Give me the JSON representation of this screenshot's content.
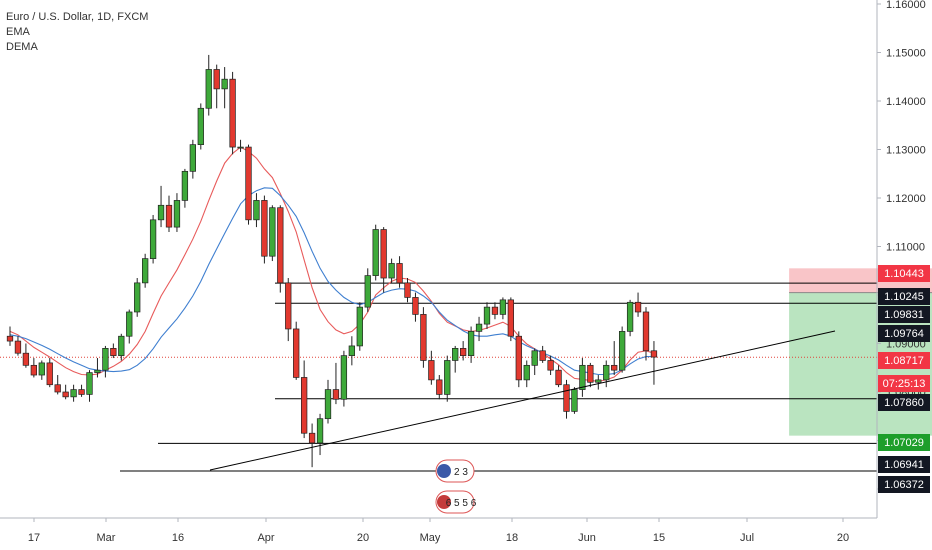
{
  "legend": {
    "symbol": "Euro / U.S. Dollar, 1D, FXCM",
    "indicator_1": "EMA",
    "indicator_2": "DEMA"
  },
  "chart_data": {
    "type": "candlestick",
    "title": "Euro / U.S. Dollar, 1D, FXCM",
    "ylim": [
      1.055,
      1.165
    ],
    "y_ticks": [
      "1.16000",
      "1.15000",
      "1.14000",
      "1.13000",
      "1.12000",
      "1.11000",
      "1.10000",
      "1.09000",
      "1.08000",
      "1.07000",
      "1.06000"
    ],
    "x_ticks": [
      "17",
      "Mar",
      "16",
      "Apr",
      "20",
      "May",
      "18",
      "Jun",
      "15",
      "Jul",
      "20"
    ],
    "price_labels": [
      {
        "text": "1.10443",
        "color": "#f23645"
      },
      {
        "text": "1.10245",
        "color": "#131722"
      },
      {
        "text": "1.09831",
        "color": "#131722"
      },
      {
        "text": "1.09764",
        "color": "#131722"
      },
      {
        "text": "1.08717",
        "color": "#f23645"
      },
      {
        "text": "07:25:13",
        "color": "#f23645"
      },
      {
        "text": "1.07860",
        "color": "#131722"
      },
      {
        "text": "1.07029",
        "color": "#1e9e2b"
      },
      {
        "text": "1.06941",
        "color": "#131722"
      },
      {
        "text": "1.06372",
        "color": "#131722"
      }
    ],
    "label_prices": [
      1.10443,
      1.10245,
      1.09831,
      1.09764,
      1.08717,
      1.08717,
      1.0786,
      1.07029,
      1.06941,
      1.06372
    ],
    "horizontal_levels": [
      1.10245,
      1.09831,
      1.0786,
      1.06941,
      1.06372
    ],
    "last_price": 1.08717,
    "trendline": {
      "from": [
        30,
        1.0648
      ],
      "to": [
        220,
        1.0971
      ]
    },
    "position": {
      "entry": 1.1005,
      "stop": 1.1055,
      "target": 1.071,
      "from_index": 98,
      "to_index": 121
    },
    "badges": [
      {
        "index": 101,
        "price": 1.0665,
        "text": "2 3"
      },
      {
        "index": 101,
        "price": 1.0625,
        "text": "6 5 5 6"
      }
    ],
    "candles": [
      [
        0,
        1.0915,
        1.0935,
        1.0895,
        1.0905
      ],
      [
        1,
        1.0905,
        1.0915,
        1.0875,
        1.088
      ],
      [
        2,
        1.088,
        1.09,
        1.085,
        1.0855
      ],
      [
        3,
        1.0855,
        1.087,
        1.083,
        1.0835
      ],
      [
        4,
        1.0835,
        1.0865,
        1.0825,
        1.086
      ],
      [
        5,
        1.086,
        1.087,
        1.081,
        1.0815
      ],
      [
        6,
        1.0815,
        1.0835,
        1.0795,
        1.08
      ],
      [
        7,
        1.08,
        1.0815,
        1.0785,
        1.079
      ],
      [
        8,
        1.079,
        1.0815,
        1.078,
        1.0805
      ],
      [
        9,
        1.0805,
        1.0815,
        1.079,
        1.0795
      ],
      [
        10,
        1.0795,
        1.0845,
        1.078,
        1.084
      ],
      [
        11,
        1.084,
        1.087,
        1.083,
        1.0845
      ],
      [
        12,
        1.0845,
        1.0895,
        1.083,
        1.089
      ],
      [
        13,
        1.089,
        1.09,
        1.087,
        1.0875
      ],
      [
        14,
        1.0875,
        1.092,
        1.0865,
        1.0915
      ],
      [
        15,
        1.0915,
        1.097,
        1.09,
        1.0965
      ],
      [
        16,
        1.0965,
        1.1035,
        1.0955,
        1.1025
      ],
      [
        17,
        1.1025,
        1.1085,
        1.1015,
        1.1075
      ],
      [
        18,
        1.1075,
        1.1165,
        1.1065,
        1.1155
      ],
      [
        19,
        1.1155,
        1.1225,
        1.114,
        1.1185
      ],
      [
        20,
        1.1185,
        1.1205,
        1.113,
        1.114
      ],
      [
        21,
        1.114,
        1.121,
        1.113,
        1.1195
      ],
      [
        22,
        1.1195,
        1.126,
        1.118,
        1.1255
      ],
      [
        23,
        1.1255,
        1.132,
        1.124,
        1.131
      ],
      [
        24,
        1.131,
        1.1395,
        1.13,
        1.1385
      ],
      [
        25,
        1.1385,
        1.1495,
        1.137,
        1.1465
      ],
      [
        26,
        1.1465,
        1.1475,
        1.1385,
        1.1425
      ],
      [
        27,
        1.1425,
        1.147,
        1.1385,
        1.1445
      ],
      [
        28,
        1.1445,
        1.146,
        1.129,
        1.1305
      ],
      [
        29,
        1.1305,
        1.132,
        1.1295,
        1.1305
      ],
      [
        30,
        1.1305,
        1.131,
        1.1145,
        1.1155
      ],
      [
        31,
        1.1155,
        1.121,
        1.114,
        1.1195
      ],
      [
        32,
        1.1195,
        1.1205,
        1.1065,
        1.108
      ],
      [
        33,
        1.108,
        1.1185,
        1.107,
        1.118
      ],
      [
        34,
        1.118,
        1.1185,
        1.1005,
        1.1025
      ],
      [
        35,
        1.1025,
        1.1035,
        1.0905,
        1.093
      ],
      [
        36,
        1.093,
        1.0945,
        1.0825,
        1.083
      ],
      [
        37,
        1.083,
        1.0865,
        1.0705,
        1.0715
      ],
      [
        38,
        1.0715,
        1.0735,
        1.0645,
        1.0695
      ],
      [
        39,
        1.0695,
        1.0755,
        1.067,
        1.0745
      ],
      [
        40,
        1.0745,
        1.0825,
        1.0735,
        1.0805
      ],
      [
        41,
        1.0805,
        1.086,
        1.0775,
        1.0785
      ],
      [
        42,
        1.0785,
        1.0885,
        1.077,
        1.0875
      ],
      [
        43,
        1.0875,
        1.0915,
        1.0855,
        1.0895
      ],
      [
        44,
        1.0895,
        1.0985,
        1.0885,
        1.0975
      ],
      [
        45,
        1.0975,
        1.1055,
        1.0965,
        1.104
      ],
      [
        46,
        1.104,
        1.1145,
        1.103,
        1.1135
      ],
      [
        47,
        1.1135,
        1.114,
        1.1005,
        1.1035
      ],
      [
        48,
        1.1035,
        1.1075,
        1.1025,
        1.1065
      ],
      [
        49,
        1.1065,
        1.108,
        1.1015,
        1.1025
      ],
      [
        50,
        1.1025,
        1.1035,
        1.0985,
        1.0995
      ],
      [
        51,
        1.0995,
        1.1005,
        1.0945,
        1.096
      ],
      [
        52,
        1.096,
        1.0975,
        1.085,
        1.0865
      ],
      [
        53,
        1.0865,
        1.0885,
        1.0815,
        1.0825
      ],
      [
        54,
        1.0825,
        1.0835,
        1.0785,
        1.0795
      ],
      [
        55,
        1.0795,
        1.0875,
        1.078,
        1.0865
      ],
      [
        56,
        1.0865,
        1.0895,
        1.084,
        1.089
      ],
      [
        57,
        1.089,
        1.0905,
        1.0865,
        1.0875
      ],
      [
        58,
        1.0875,
        1.0935,
        1.086,
        1.0925
      ],
      [
        59,
        1.0925,
        1.0955,
        1.0905,
        1.094
      ],
      [
        60,
        1.094,
        1.0985,
        1.093,
        1.0975
      ],
      [
        61,
        1.0975,
        1.0985,
        1.095,
        1.096
      ],
      [
        62,
        1.096,
        1.0995,
        1.095,
        1.099
      ],
      [
        63,
        1.099,
        1.0995,
        1.0905,
        1.0915
      ],
      [
        64,
        1.0915,
        1.0925,
        1.081,
        1.0825
      ],
      [
        65,
        1.0825,
        1.0865,
        1.081,
        1.0855
      ],
      [
        66,
        1.0855,
        1.089,
        1.0835,
        1.0885
      ],
      [
        67,
        1.0885,
        1.0895,
        1.086,
        1.0865
      ],
      [
        68,
        1.0865,
        1.0875,
        1.0835,
        1.0845
      ],
      [
        69,
        1.0845,
        1.0855,
        1.081,
        1.0815
      ],
      [
        70,
        1.0815,
        1.0825,
        1.0745,
        1.076
      ],
      [
        71,
        1.076,
        1.081,
        1.0755,
        1.0805
      ],
      [
        72,
        1.0805,
        1.087,
        1.079,
        1.0855
      ],
      [
        73,
        1.0855,
        1.086,
        1.081,
        1.082
      ],
      [
        74,
        1.082,
        1.0835,
        1.0805,
        1.0825
      ],
      [
        75,
        1.0825,
        1.0865,
        1.081,
        1.0855
      ],
      [
        76,
        1.0855,
        1.0905,
        1.0835,
        1.0845
      ],
      [
        77,
        1.0845,
        1.0935,
        1.084,
        1.0925
      ],
      [
        78,
        1.0925,
        1.099,
        1.0915,
        1.0985
      ],
      [
        79,
        1.0985,
        1.1005,
        1.0955,
        1.0965
      ],
      [
        80,
        1.0965,
        1.0975,
        1.0865,
        1.0885
      ],
      [
        81,
        1.0885,
        1.0905,
        1.0815,
        1.0872
      ]
    ],
    "ema": [
      1.0918,
      1.0915,
      1.091,
      1.0903,
      1.0896,
      1.0888,
      1.0879,
      1.087,
      1.0862,
      1.0855,
      1.0848,
      1.0845,
      1.0843,
      1.0842,
      1.0843,
      1.0846,
      1.0855,
      1.0869,
      1.0889,
      1.0913,
      1.0932,
      1.0951,
      1.0973,
      1.0998,
      1.1028,
      1.1063,
      1.1095,
      1.1127,
      1.1158,
      1.1188,
      1.1205,
      1.1215,
      1.1221,
      1.122,
      1.1205,
      1.1185,
      1.1162,
      1.1128,
      1.109,
      1.1055,
      1.1028,
      1.101,
      1.0995,
      1.0985,
      1.098,
      1.0985,
      1.0995,
      1.1005,
      1.101,
      1.1013,
      1.1012,
      1.1008,
      1.0998,
      1.0985,
      1.0965,
      1.0948,
      1.0937,
      1.0926,
      1.0918,
      1.0915,
      1.0915,
      1.0918,
      1.092,
      1.0915,
      1.0904,
      1.0895,
      1.0888,
      1.0881,
      1.0874,
      1.0866,
      1.0855,
      1.0845,
      1.0842,
      1.0839,
      1.0836,
      1.0836,
      1.0838,
      1.0846,
      1.0858,
      1.0868,
      1.0873,
      1.0873
    ],
    "dema": [
      1.0925,
      1.0918,
      1.0905,
      1.0892,
      1.0882,
      1.0872,
      1.0861,
      1.085,
      1.0842,
      1.0836,
      1.0835,
      1.0837,
      1.0845,
      1.0853,
      1.0863,
      1.0878,
      1.0898,
      1.0925,
      1.0962,
      1.0998,
      1.1025,
      1.1052,
      1.1083,
      1.1115,
      1.1152,
      1.1195,
      1.1235,
      1.1272,
      1.1292,
      1.1305,
      1.1296,
      1.1282,
      1.126,
      1.1242,
      1.1209,
      1.1172,
      1.113,
      1.1072,
      1.1015,
      1.097,
      1.0945,
      1.0928,
      1.092,
      1.0925,
      1.094,
      1.0965,
      1.1,
      1.1015,
      1.1028,
      1.1035,
      1.1033,
      1.1026,
      1.1008,
      1.0987,
      1.0962,
      1.0944,
      1.0936,
      1.0928,
      1.0925,
      1.0927,
      1.0932,
      1.0938,
      1.0944,
      1.0935,
      1.0915,
      1.0899,
      1.0889,
      1.088,
      1.0868,
      1.0856,
      1.084,
      1.0828,
      1.0826,
      1.0824,
      1.0822,
      1.0825,
      1.0831,
      1.0845,
      1.0866,
      1.0882,
      1.0885,
      1.088
    ]
  }
}
